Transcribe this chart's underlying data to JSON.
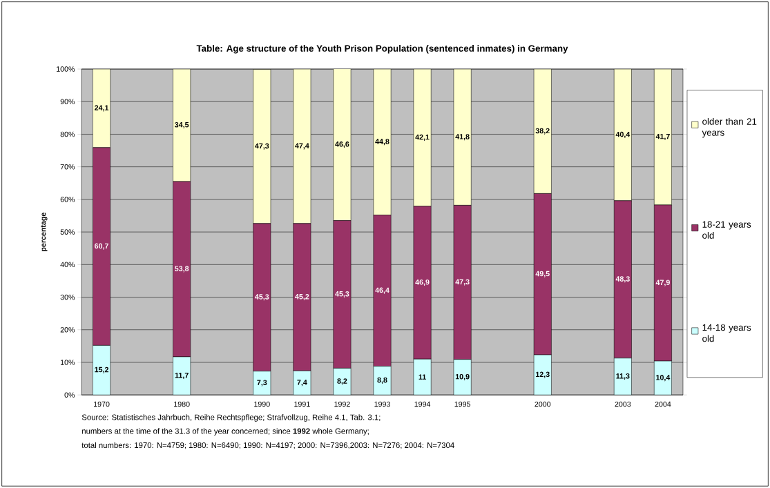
{
  "chart_data": {
    "type": "bar",
    "stacked": true,
    "title": "Table: Age structure of the Youth Prison Population (sentenced inmates) in Germany",
    "ylabel": "percentage",
    "categories": [
      "1970",
      null,
      "1980",
      null,
      "1990",
      "1991",
      "1992",
      "1993",
      "1994",
      "1995",
      null,
      "2000",
      null,
      "2003",
      "2004"
    ],
    "series": [
      {
        "name": "14-18 years old",
        "color": "#ccffff",
        "values": [
          15.2,
          null,
          11.7,
          null,
          7.3,
          7.4,
          8.2,
          8.8,
          11,
          10.9,
          null,
          12.3,
          null,
          11.3,
          10.4
        ],
        "value_labels": [
          "15,2",
          null,
          "11,7",
          null,
          "7,3",
          "7,4",
          "8,2",
          "8,8",
          "11",
          "10,9",
          null,
          "12,3",
          null,
          "11,3",
          "10,4"
        ]
      },
      {
        "name": "18-21 years old",
        "color": "#993366",
        "values": [
          60.7,
          null,
          53.8,
          null,
          45.3,
          45.2,
          45.3,
          46.4,
          46.9,
          47.3,
          null,
          49.5,
          null,
          48.3,
          47.9
        ],
        "value_labels": [
          "60,7",
          null,
          "53,8",
          null,
          "45,3",
          "45,2",
          "45,3",
          "46,4",
          "46,9",
          "47,3",
          null,
          "49,5",
          null,
          "48,3",
          "47,9"
        ]
      },
      {
        "name": "older than 21 years",
        "color": "#ffffcc",
        "values": [
          24.1,
          null,
          34.5,
          null,
          47.3,
          47.4,
          46.6,
          44.8,
          42.1,
          41.8,
          null,
          38.2,
          null,
          40.4,
          41.7
        ],
        "value_labels": [
          "24,1",
          null,
          "34,5",
          null,
          "47,3",
          "47,4",
          "46,6",
          "44,8",
          "42,1",
          "41,8",
          null,
          "38,2",
          null,
          "40,4",
          "41,7"
        ]
      }
    ],
    "ylim": [
      0,
      100
    ],
    "yticks": [
      {
        "value": 0,
        "label": "0%"
      },
      {
        "value": 10,
        "label": "10%"
      },
      {
        "value": 20,
        "label": "20%"
      },
      {
        "value": 30,
        "label": "30%"
      },
      {
        "value": 40,
        "label": "40%"
      },
      {
        "value": 50,
        "label": "50%"
      },
      {
        "value": 60,
        "label": "60%"
      },
      {
        "value": 70,
        "label": "70%"
      },
      {
        "value": 80,
        "label": "80%"
      },
      {
        "value": 90,
        "label": "90%"
      },
      {
        "value": 100,
        "label": "100%"
      }
    ],
    "grid": "y",
    "legend": "right",
    "annotations": [
      "Source: Statistisches Jahrbuch, Reihe Rechtspflege; Strafvollzug, Reihe 4.1, Tab. 3.1;",
      "numbers at the time of the  31.3 of the year concerned; since **1992** whole Germany;",
      "total numbers: 1970: N=4759; 1980: N=6490; 1990: N=4197; 2000: N=7396,2003: N=7276; 2004: N=7304"
    ]
  }
}
